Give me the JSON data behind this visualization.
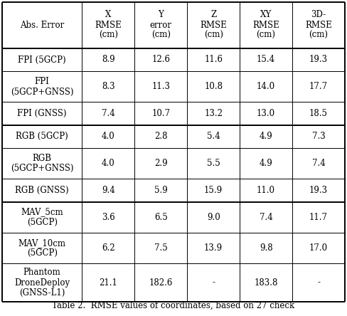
{
  "col_headers": [
    "Abs. Error",
    "X\nRMSE\n(cm)",
    "Y\nerror\n(cm)",
    "Z\nRMSE\n(cm)",
    "XY\nRMSE\n(cm)",
    "3D-\nRMSE\n(cm)"
  ],
  "rows": [
    [
      "FPI (5GCP)",
      "8.9",
      "12.6",
      "11.6",
      "15.4",
      "19.3"
    ],
    [
      "FPI\n(5GCP+GNSS)",
      "8.3",
      "11.3",
      "10.8",
      "14.0",
      "17.7"
    ],
    [
      "FPI (GNSS)",
      "7.4",
      "10.7",
      "13.2",
      "13.0",
      "18.5"
    ],
    [
      "RGB (5GCP)",
      "4.0",
      "2.8",
      "5.4",
      "4.9",
      "7.3"
    ],
    [
      "RGB\n(5GCP+GNSS)",
      "4.0",
      "2.9",
      "5.5",
      "4.9",
      "7.4"
    ],
    [
      "RGB (GNSS)",
      "9.4",
      "5.9",
      "15.9",
      "11.0",
      "19.3"
    ],
    [
      "MAV_5cm\n(5GCP)",
      "3.6",
      "6.5",
      "9.0",
      "7.4",
      "11.7"
    ],
    [
      "MAV_10cm\n(5GCP)",
      "6.2",
      "7.5",
      "13.9",
      "9.8",
      "17.0"
    ],
    [
      "Phantom\nDroneDeploy\n(GNSS-L1)",
      "21.1",
      "182.6",
      "-",
      "183.8",
      "-"
    ]
  ],
  "caption": "Table 2.  RMSE values of coordinates, based on 27 check",
  "col_widths_rel": [
    1.52,
    1.0,
    1.0,
    1.0,
    1.0,
    1.0
  ],
  "row_heights_rel": [
    4.2,
    2.1,
    2.8,
    2.1,
    2.1,
    2.8,
    2.1,
    2.8,
    2.8,
    3.5
  ],
  "background_color": "#ffffff",
  "line_color": "#000000",
  "text_color": "#000000",
  "font_size": 8.5,
  "caption_font_size": 8.5,
  "font_family": "DejaVu Serif",
  "thin_lw": 0.7,
  "thick_lw": 1.4,
  "thick_h_lines": [
    0,
    1,
    4,
    7,
    10
  ],
  "thick_v_lines": [
    0,
    6
  ]
}
